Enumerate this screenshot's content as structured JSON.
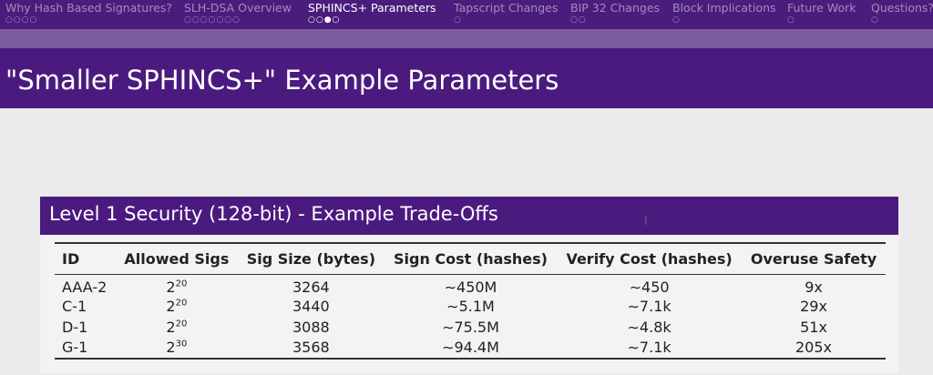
{
  "nav": {
    "items": [
      {
        "label": "Why Hash Based Signatures?",
        "dots": "○○○○"
      },
      {
        "label": "SLH-DSA Overview",
        "dots": "○○○○○○○"
      },
      {
        "label": "SPHINCS+ Parameters",
        "dots": "○○●○",
        "active": true
      },
      {
        "label": "Tapscript Changes",
        "dots": "○"
      },
      {
        "label": "BIP 32 Changes",
        "dots": "○○"
      },
      {
        "label": "Block Implications",
        "dots": "○"
      },
      {
        "label": "Future Work",
        "dots": "○"
      },
      {
        "label": "Questions?",
        "dots": "○"
      }
    ]
  },
  "slide": {
    "title": "\"Smaller SPHINCS+\" Example Parameters"
  },
  "block": {
    "title": "Level 1 Security (128-bit) - Example Trade-Offs"
  },
  "table": {
    "headers": [
      "ID",
      "Allowed Sigs",
      "Sig Size (bytes)",
      "Sign Cost (hashes)",
      "Verify Cost (hashes)",
      "Overuse Safety"
    ],
    "rows": [
      {
        "id": "AAA-2",
        "sigs_base": "2",
        "sigs_exp": "20",
        "size": "3264",
        "sign": "∼450M",
        "verify": "∼450",
        "safety": "9x"
      },
      {
        "id": "C-1",
        "sigs_base": "2",
        "sigs_exp": "20",
        "size": "3440",
        "sign": "∼5.1M",
        "verify": "∼7.1k",
        "safety": "29x"
      },
      {
        "id": "D-1",
        "sigs_base": "2",
        "sigs_exp": "20",
        "size": "3088",
        "sign": "∼75.5M",
        "verify": "∼4.8k",
        "safety": "51x"
      },
      {
        "id": "G-1",
        "sigs_base": "2",
        "sigs_exp": "30",
        "size": "3568",
        "sign": "∼94.4M",
        "verify": "∼7.1k",
        "safety": "205x"
      }
    ]
  },
  "colors": {
    "theme_purple": "#4b1a7f",
    "band": "#7b5b9e",
    "background": "#ebebeb"
  },
  "cursor": "text-cursor-icon"
}
